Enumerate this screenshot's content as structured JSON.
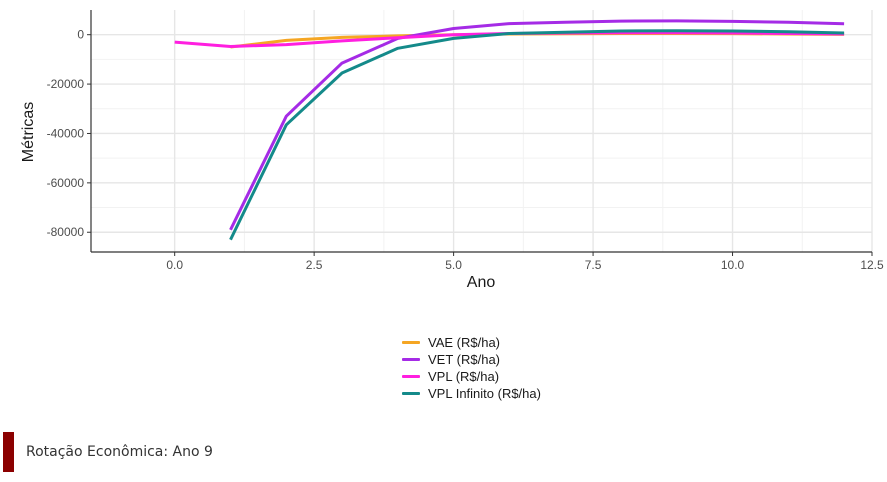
{
  "chart_data": {
    "type": "line",
    "xlabel": "Ano",
    "ylabel": "Métricas",
    "xlim": [
      -1.5,
      12.5
    ],
    "ylim": [
      -88000,
      10000
    ],
    "x_ticks": [
      0,
      2.5,
      5,
      7.5,
      10,
      12.5
    ],
    "x_tick_labels": [
      "0.0",
      "2.5",
      "5.0",
      "7.5",
      "10.0",
      "12.5"
    ],
    "y_ticks": [
      0,
      -20000,
      -40000,
      -60000,
      -80000
    ],
    "y_tick_labels": [
      "0",
      "-20000",
      "-40000",
      "-60000",
      "-80000"
    ],
    "grid": true,
    "legend_position": "bottom",
    "series": [
      {
        "name": "VAE (R$/ha)",
        "color": "#f5a623",
        "x": [
          1,
          2,
          3,
          4,
          5,
          6,
          7,
          8,
          9,
          10,
          11,
          12
        ],
        "y": [
          -5000,
          -2300,
          -1100,
          -500,
          0,
          300,
          400,
          500,
          500,
          450,
          300,
          100
        ]
      },
      {
        "name": "VET (R$/ha)",
        "color": "#a52be6",
        "x": [
          1,
          2,
          3,
          4,
          5,
          6,
          7,
          8,
          9,
          10,
          11,
          12
        ],
        "y": [
          -79000,
          -33000,
          -11500,
          -1500,
          2500,
          4500,
          5000,
          5500,
          5600,
          5400,
          5000,
          4400
        ]
      },
      {
        "name": "VPL (R$/ha)",
        "color": "#ff1fe0",
        "x": [
          0,
          1,
          2,
          3,
          4,
          5,
          6,
          7,
          8,
          9,
          10,
          11,
          12
        ],
        "y": [
          -3000,
          -4800,
          -4000,
          -2500,
          -1200,
          0,
          500,
          700,
          800,
          800,
          700,
          500,
          300
        ]
      },
      {
        "name": "VPL Infinito (R$/ha)",
        "color": "#148a8a",
        "x": [
          1,
          2,
          3,
          4,
          5,
          6,
          7,
          8,
          9,
          10,
          11,
          12
        ],
        "y": [
          -83000,
          -36500,
          -15500,
          -5500,
          -1500,
          500,
          1000,
          1500,
          1600,
          1500,
          1200,
          700
        ]
      }
    ]
  },
  "footer": {
    "text": "Rotação Econômica: Ano 9",
    "bar_color": "#8b0000"
  }
}
